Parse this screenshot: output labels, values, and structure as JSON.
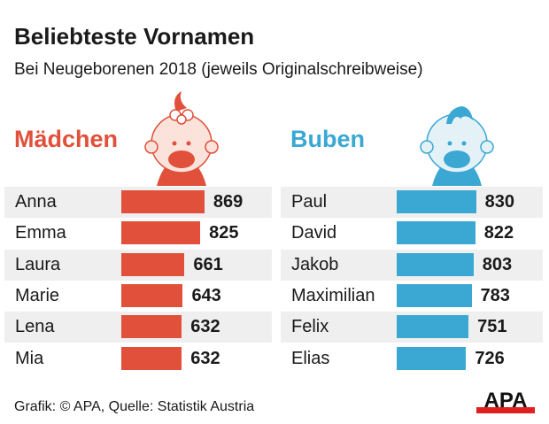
{
  "title": "Beliebteste Vornamen",
  "subtitle": "Bei Neugeborenen 2018 (jeweils Originalschreibweise)",
  "source": "Grafik: © APA, Quelle: Statistik Austria",
  "logo_text": "APA",
  "colors": {
    "girls": "#e0503a",
    "boys": "#3aa8d3"
  },
  "chart_data": [
    {
      "type": "bar",
      "title": "Mädchen",
      "categories": [
        "Anna",
        "Emma",
        "Laura",
        "Marie",
        "Lena",
        "Mia"
      ],
      "values": [
        869,
        825,
        661,
        643,
        632,
        632
      ],
      "icon": "baby-girl-icon"
    },
    {
      "type": "bar",
      "title": "Buben",
      "categories": [
        "Paul",
        "David",
        "Jakob",
        "Maximilian",
        "Felix",
        "Elias"
      ],
      "values": [
        830,
        822,
        803,
        783,
        751,
        726
      ],
      "icon": "baby-boy-icon"
    }
  ]
}
